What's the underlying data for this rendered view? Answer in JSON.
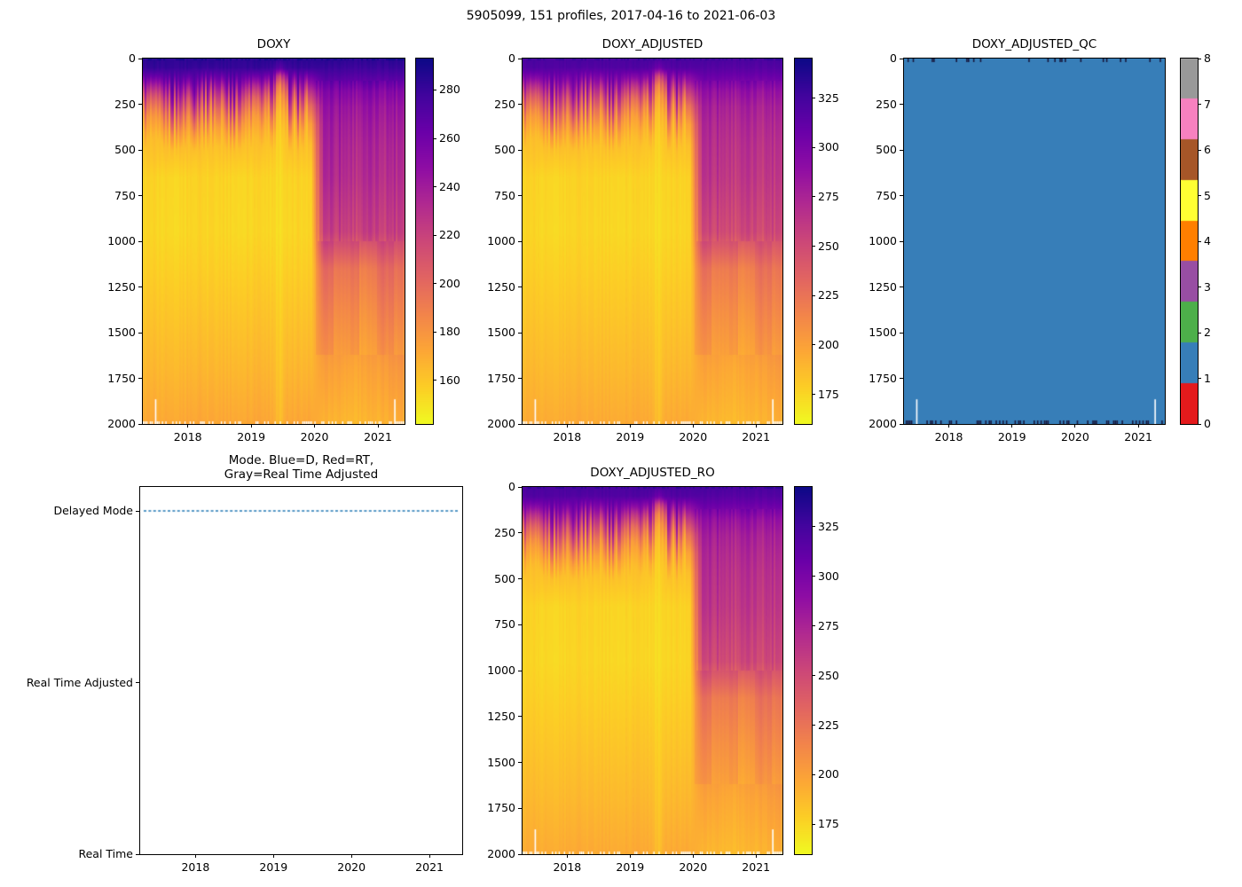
{
  "figure": {
    "title": "5905099, 151 profiles, 2017-04-16 to 2021-06-03"
  },
  "chart_data": [
    {
      "id": "doxy",
      "type": "heatmap",
      "title": "DOXY",
      "x_range": [
        2017.29,
        2021.42
      ],
      "x_ticks": [
        2018,
        2019,
        2020,
        2021
      ],
      "y_range": [
        0,
        2000
      ],
      "y_ticks": [
        0,
        250,
        500,
        750,
        1000,
        1250,
        1500,
        1750,
        2000
      ],
      "n_profiles": 151,
      "colormap": "plasma_reversed",
      "vmin": 142,
      "vmax": 293,
      "colorbar_ticks": [
        160,
        180,
        200,
        220,
        240,
        260,
        280
      ],
      "gain": 1.0,
      "missing_marks": {
        "columns": [
          7,
          145
        ],
        "depth_top": 1865
      },
      "grid": {
        "times": [
          2017.29,
          2017.8,
          2018.3,
          2018.8,
          2019.3,
          2019.48,
          2019.56,
          2019.72,
          2019.95,
          2020.15,
          2020.7,
          2021.42
        ],
        "depths": [
          0,
          50,
          110,
          180,
          260,
          360,
          470,
          650,
          950,
          1150,
          1400,
          1700,
          2000
        ],
        "values": [
          [
            285,
            284,
            285,
            284,
            285,
            283,
            284,
            285,
            284,
            285,
            284,
            285
          ],
          [
            281,
            282,
            280,
            282,
            280,
            268,
            278,
            281,
            280,
            280,
            279,
            280
          ],
          [
            262,
            266,
            258,
            263,
            256,
            212,
            248,
            258,
            256,
            270,
            268,
            269
          ],
          [
            234,
            240,
            228,
            236,
            224,
            180,
            220,
            232,
            228,
            256,
            252,
            254
          ],
          [
            204,
            212,
            198,
            206,
            194,
            167,
            196,
            202,
            198,
            248,
            243,
            246
          ],
          [
            178,
            184,
            174,
            180,
            172,
            159,
            174,
            177,
            174,
            243,
            238,
            241
          ],
          [
            163,
            165,
            162,
            164,
            161,
            155,
            162,
            163,
            162,
            240,
            234,
            237
          ],
          [
            156,
            155,
            156,
            155,
            155,
            152,
            155,
            156,
            155,
            236,
            230,
            233
          ],
          [
            155,
            154,
            155,
            154,
            154,
            151,
            154,
            155,
            154,
            224,
            220,
            224
          ],
          [
            157,
            157,
            157,
            157,
            157,
            153,
            157,
            157,
            157,
            196,
            192,
            202
          ],
          [
            161,
            161,
            161,
            161,
            161,
            156,
            161,
            161,
            161,
            186,
            182,
            192
          ],
          [
            166,
            166,
            166,
            166,
            166,
            159,
            166,
            166,
            166,
            175,
            172,
            179
          ],
          [
            172,
            172,
            172,
            172,
            172,
            163,
            172,
            172,
            172,
            167,
            165,
            170
          ]
        ]
      }
    },
    {
      "id": "doxy_adjusted",
      "type": "heatmap",
      "title": "DOXY_ADJUSTED",
      "x_range": [
        2017.29,
        2021.42
      ],
      "x_ticks": [
        2018,
        2019,
        2020,
        2021
      ],
      "y_range": [
        0,
        2000
      ],
      "y_ticks": [
        0,
        250,
        500,
        750,
        1000,
        1250,
        1500,
        1750,
        2000
      ],
      "n_profiles": 151,
      "colormap": "plasma_reversed",
      "vmin": 160,
      "vmax": 345,
      "colorbar_ticks": [
        175,
        200,
        225,
        250,
        275,
        300,
        325
      ],
      "gain": 1.135,
      "grid_ref": 0,
      "missing_marks": {
        "columns": [
          7,
          145
        ],
        "depth_top": 1865
      }
    },
    {
      "id": "doxy_adjusted_qc",
      "type": "heatmap_discrete",
      "title": "DOXY_ADJUSTED_QC",
      "x_range": [
        2017.29,
        2021.42
      ],
      "x_ticks": [
        2018,
        2019,
        2020,
        2021
      ],
      "y_range": [
        0,
        2000
      ],
      "y_ticks": [
        0,
        250,
        500,
        750,
        1000,
        1250,
        1500,
        1750,
        2000
      ],
      "n_profiles": 151,
      "palette": [
        "#e41a1c",
        "#377eb8",
        "#4daf4a",
        "#984ea3",
        "#ff7f00",
        "#ffff33",
        "#a65628",
        "#f781bf",
        "#999999"
      ],
      "colorbar_ticks": [
        0,
        1,
        2,
        3,
        4,
        5,
        6,
        7,
        8
      ],
      "dominant_qc_value": 1,
      "missing_marks": {
        "columns": [
          7,
          145
        ],
        "depth_top": 1865
      }
    },
    {
      "id": "mode",
      "type": "line",
      "title": "Mode. Blue=D, Red=RT,\nGray=Real Time Adjusted",
      "x_range": [
        2017.29,
        2021.42
      ],
      "x_ticks": [
        2018,
        2019,
        2020,
        2021
      ],
      "y_range": [
        0,
        2.14
      ],
      "y_tick_values": [
        2,
        1,
        0
      ],
      "y_tick_labels": [
        "Delayed Mode",
        "Real Time Adjusted",
        "Real Time"
      ],
      "series": [
        {
          "name": "data_mode",
          "color": "#1f77b4",
          "line_style": "dashed",
          "value": 2,
          "value_label": "Delayed Mode"
        }
      ]
    },
    {
      "id": "doxy_adjusted_ro",
      "type": "heatmap",
      "title": "DOXY_ADJUSTED_RO",
      "x_range": [
        2017.29,
        2021.42
      ],
      "x_ticks": [
        2018,
        2019,
        2020,
        2021
      ],
      "y_range": [
        0,
        2000
      ],
      "y_ticks": [
        0,
        250,
        500,
        750,
        1000,
        1250,
        1500,
        1750,
        2000
      ],
      "n_profiles": 151,
      "colormap": "plasma_reversed",
      "vmin": 160,
      "vmax": 345,
      "colorbar_ticks": [
        175,
        200,
        225,
        250,
        275,
        300,
        325
      ],
      "gain": 1.135,
      "grid_ref": 0,
      "missing_marks": {
        "columns": [
          7,
          145
        ],
        "depth_top": 1865
      }
    }
  ]
}
